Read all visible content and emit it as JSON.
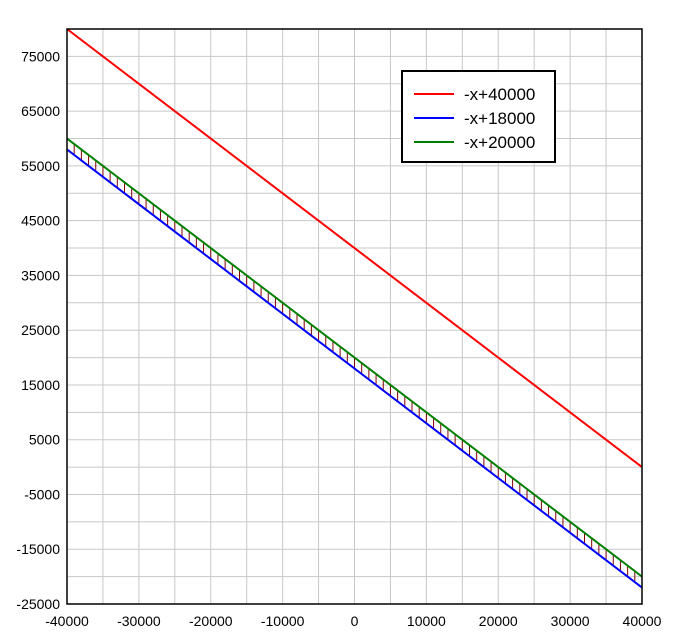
{
  "chart_data": {
    "type": "line",
    "title": "",
    "xlabel": "",
    "ylabel": "",
    "xlim": [
      -40000,
      40000
    ],
    "ylim": [
      -25000,
      80000
    ],
    "x_ticks": [
      -40000,
      -30000,
      -20000,
      -10000,
      0,
      10000,
      20000,
      30000,
      40000
    ],
    "y_ticks": [
      -25000,
      -15000,
      -5000,
      5000,
      15000,
      25000,
      35000,
      45000,
      55000,
      65000,
      75000
    ],
    "grid": true,
    "legend_position": "top-right",
    "series": [
      {
        "name": "-x+40000",
        "color": "#ff0000",
        "x": [
          -40000,
          40000
        ],
        "y": [
          80000,
          0
        ]
      },
      {
        "name": "-x+18000",
        "color": "#0000ff",
        "x": [
          -40000,
          40000
        ],
        "y": [
          58000,
          -22000
        ]
      },
      {
        "name": "-x+20000",
        "color": "#008000",
        "x": [
          -40000,
          40000
        ],
        "y": [
          60000,
          -20000
        ]
      }
    ],
    "shaded_region": {
      "between": [
        "-x+18000",
        "-x+20000"
      ],
      "pattern": "vertical hatch",
      "color": "#800000"
    }
  }
}
